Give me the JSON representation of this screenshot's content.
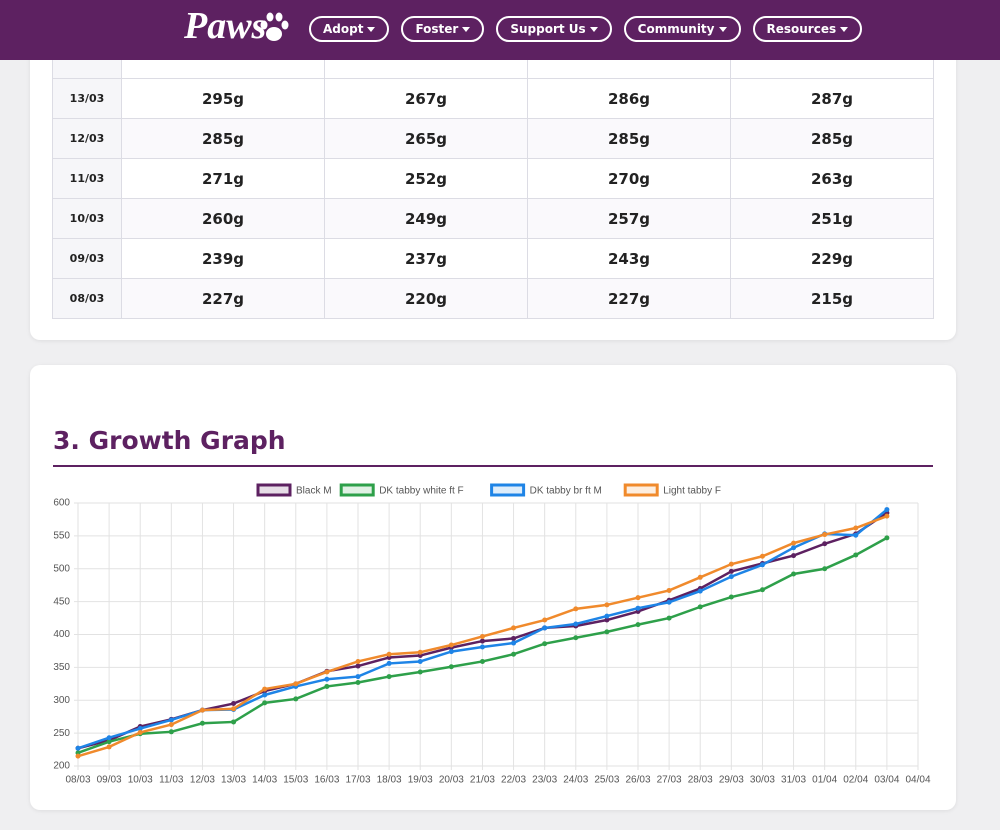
{
  "nav": {
    "logo": "Paws",
    "items": [
      "Adopt",
      "Foster",
      "Support Us",
      "Community",
      "Resources"
    ]
  },
  "table": {
    "rows": [
      [
        "13/03",
        "295g",
        "267g",
        "286g",
        "287g"
      ],
      [
        "12/03",
        "285g",
        "265g",
        "285g",
        "285g"
      ],
      [
        "11/03",
        "271g",
        "252g",
        "270g",
        "263g"
      ],
      [
        "10/03",
        "260g",
        "249g",
        "257g",
        "251g"
      ],
      [
        "09/03",
        "239g",
        "237g",
        "243g",
        "229g"
      ],
      [
        "08/03",
        "227g",
        "220g",
        "227g",
        "215g"
      ]
    ]
  },
  "chart_data": {
    "type": "line",
    "title": "3. Growth Graph",
    "categories": [
      "08/03",
      "09/03",
      "10/03",
      "11/03",
      "12/03",
      "13/03",
      "14/03",
      "15/03",
      "16/03",
      "17/03",
      "18/03",
      "19/03",
      "20/03",
      "21/03",
      "22/03",
      "23/03",
      "24/03",
      "25/03",
      "26/03",
      "27/03",
      "28/03",
      "29/03",
      "30/03",
      "31/03",
      "01/04",
      "02/04",
      "03/04",
      "04/04"
    ],
    "series": [
      {
        "name": "Black M",
        "color": "#5d2161",
        "values": [
          227,
          239,
          260,
          271,
          285,
          295,
          314,
          325,
          344,
          352,
          365,
          368,
          380,
          390,
          394,
          410,
          413,
          422,
          435,
          452,
          470,
          496,
          508,
          520,
          538,
          553,
          585,
          null
        ]
      },
      {
        "name": "DK tabby white ft F",
        "color": "#2ea04a",
        "values": [
          220,
          237,
          249,
          252,
          265,
          267,
          296,
          302,
          321,
          327,
          336,
          343,
          351,
          359,
          370,
          386,
          395,
          404,
          415,
          425,
          442,
          457,
          468,
          492,
          500,
          521,
          547,
          null
        ]
      },
      {
        "name": "DK tabby br ft M",
        "color": "#1e84e6",
        "values": [
          227,
          243,
          257,
          270,
          285,
          286,
          308,
          321,
          332,
          336,
          356,
          359,
          374,
          381,
          387,
          410,
          416,
          428,
          440,
          449,
          466,
          488,
          506,
          532,
          553,
          551,
          590,
          null
        ]
      },
      {
        "name": "Light tabby F",
        "color": "#f08a2c",
        "values": [
          215,
          229,
          251,
          263,
          285,
          287,
          317,
          325,
          343,
          359,
          370,
          373,
          384,
          397,
          410,
          422,
          439,
          445,
          456,
          467,
          487,
          507,
          519,
          539,
          552,
          562,
          580,
          null
        ]
      }
    ],
    "ylim": [
      200,
      600
    ],
    "yticks": [
      200,
      250,
      300,
      350,
      400,
      450,
      500,
      550,
      600
    ],
    "grid": true,
    "legend": "top"
  }
}
